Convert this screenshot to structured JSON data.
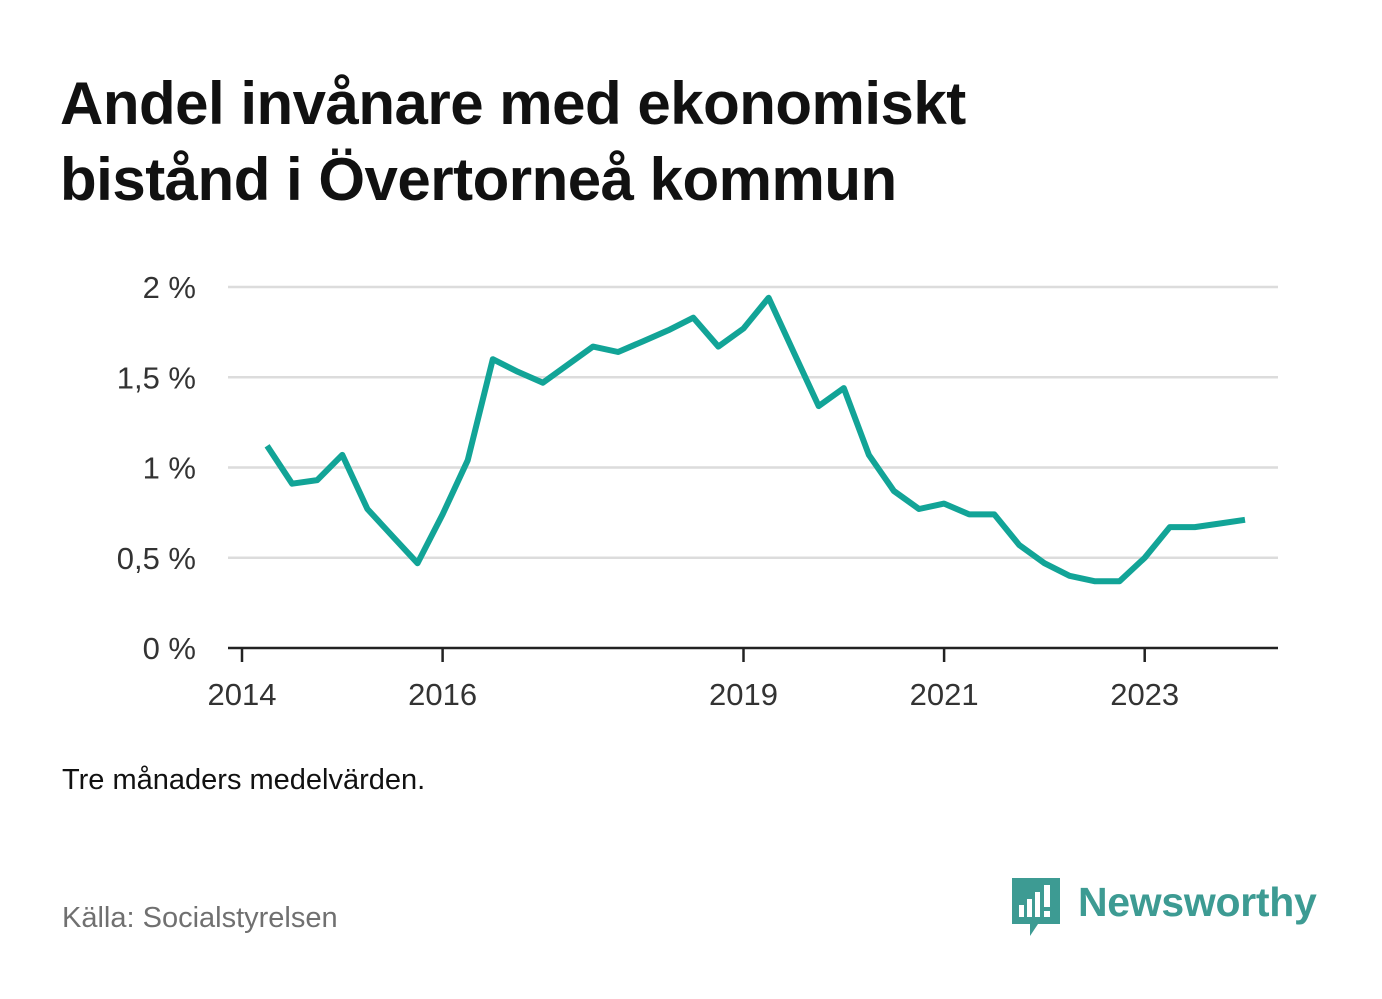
{
  "header": {
    "title_line1": "Andel invånare med ekonomiskt",
    "title_line2": "bistånd i Övertorneå kommun"
  },
  "footer": {
    "note": "Tre månaders medelvärden.",
    "source": "Källa: Socialstyrelsen",
    "brand": "Newsworthy",
    "brand_icon": "bar-chart-speech-bubble-icon"
  },
  "colors": {
    "line": "#12a497",
    "grid": "#dcdcdc",
    "axis": "#222222",
    "brand": "#3d9b93"
  },
  "chart_data": {
    "type": "line",
    "title": "Andel invånare med ekonomiskt bistånd i Övertorneå kommun",
    "xlabel": "",
    "ylabel": "",
    "xlim": [
      "2014-01",
      "2024-06"
    ],
    "ylim": [
      0,
      2
    ],
    "y_ticks": [
      0,
      0.5,
      1,
      1.5,
      2
    ],
    "y_tick_labels": [
      "0 %",
      "0,5 %",
      "1 %",
      "1,5 %",
      "2 %"
    ],
    "x_ticks": [
      "2014-01",
      "2016-01",
      "2019-01",
      "2021-01",
      "2023-01"
    ],
    "x_tick_labels": [
      "2014",
      "2016",
      "2019",
      "2021",
      "2023"
    ],
    "grid": true,
    "series": [
      {
        "x": [
          "2014-04",
          "2014-07",
          "2014-10",
          "2015-01",
          "2015-04",
          "2015-07",
          "2015-10",
          "2016-01",
          "2016-04",
          "2016-07",
          "2016-10",
          "2017-01",
          "2017-04",
          "2017-07",
          "2017-10",
          "2018-01",
          "2018-04",
          "2018-07",
          "2018-10",
          "2019-01",
          "2019-04",
          "2019-07",
          "2019-10",
          "2020-01",
          "2020-04",
          "2020-07",
          "2020-10",
          "2021-01",
          "2021-04",
          "2021-07",
          "2021-10",
          "2022-01",
          "2022-04",
          "2022-07",
          "2022-10",
          "2023-01",
          "2023-04",
          "2023-07",
          "2023-10",
          "2024-01"
        ],
        "y": [
          1.12,
          0.91,
          0.93,
          1.07,
          0.77,
          0.62,
          0.47,
          0.74,
          1.04,
          1.6,
          1.53,
          1.47,
          1.57,
          1.67,
          1.64,
          1.7,
          1.76,
          1.83,
          1.67,
          1.77,
          1.94,
          1.64,
          1.34,
          1.44,
          1.07,
          0.87,
          0.77,
          0.8,
          0.74,
          0.74,
          0.57,
          0.47,
          0.4,
          0.37,
          0.37,
          0.5,
          0.67,
          0.67,
          0.69,
          0.71
        ]
      }
    ]
  }
}
